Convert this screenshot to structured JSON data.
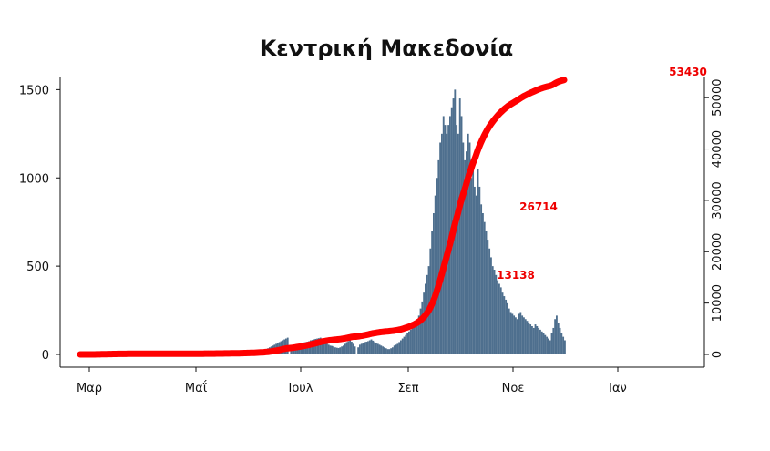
{
  "chart_data": {
    "type": "bar",
    "title": "Κεντρική Μακεδονία",
    "x_tick_labels": [
      "Μαρ",
      "Μαΐ",
      "Ιουλ",
      "Σεπ",
      "Νοε",
      "Ιαν"
    ],
    "left_axis": {
      "ylim": [
        0,
        1600
      ],
      "ticks": [
        "0",
        "500",
        "1000",
        "1500"
      ]
    },
    "right_axis": {
      "ylim": [
        0,
        55000
      ],
      "ticks": [
        "0",
        "10000",
        "20000",
        "30000",
        "40000",
        "50000"
      ]
    },
    "bar_color": "#4e6f8e",
    "line_color": "#ff0000",
    "daily_cases": [
      {
        "month": 3.18,
        "values": [
          0,
          1,
          2,
          2,
          3,
          5,
          4,
          6,
          8,
          10,
          12,
          9,
          8,
          10,
          7,
          6,
          8,
          5,
          4,
          5,
          3,
          4,
          3,
          2,
          3,
          2,
          2,
          1,
          2,
          1,
          1,
          1,
          2,
          1,
          1,
          1,
          0,
          1,
          1,
          0,
          1,
          0,
          0,
          1,
          0,
          1,
          0,
          0,
          1,
          0,
          1,
          0,
          0,
          0,
          1,
          0,
          0,
          1,
          0,
          1
        ]
      },
      {
        "month": 5.18,
        "values": [
          1,
          0,
          1,
          2,
          1,
          1,
          2,
          1,
          2,
          2,
          3,
          2,
          2,
          3,
          2,
          3,
          4,
          3,
          3,
          4,
          3,
          5,
          4,
          4,
          6,
          5,
          5,
          6,
          6,
          7,
          7,
          8,
          8,
          9,
          9,
          10,
          10,
          11,
          12,
          13,
          14,
          15,
          16,
          18,
          20,
          22,
          25,
          30,
          35,
          40,
          45,
          50,
          55,
          60,
          65,
          70,
          75,
          80,
          85,
          90,
          95
        ]
      },
      {
        "month": 7.2,
        "values": [
          35,
          40,
          45,
          50,
          55,
          60,
          62,
          65,
          68,
          70,
          72,
          75,
          80,
          82,
          85,
          88,
          90,
          92,
          95,
          85,
          80,
          70,
          60,
          55,
          50,
          48,
          45,
          40,
          38,
          36,
          40,
          45,
          50,
          60,
          70,
          75,
          80,
          72,
          60,
          45
        ]
      },
      {
        "month": 8.57,
        "values": [
          40,
          55,
          60,
          65,
          70,
          72,
          75,
          80,
          85,
          78,
          70,
          65,
          60,
          55,
          50,
          45,
          40,
          35,
          30,
          30,
          35,
          40,
          50,
          55,
          60,
          70,
          80,
          90,
          100,
          110,
          120,
          130,
          140,
          150,
          160,
          180,
          200
        ]
      },
      {
        "month": 9.77,
        "values": [
          220,
          260,
          300,
          350,
          400,
          450,
          500,
          600,
          700,
          800,
          900,
          1000,
          1100,
          1200,
          1250,
          1350,
          1300,
          1250,
          1300,
          1350,
          1400,
          1450,
          1500,
          1300,
          1250,
          1450,
          1350,
          1200,
          1100,
          1150,
          1250,
          1200,
          1000,
          1100,
          950,
          900,
          1050,
          950,
          850,
          800,
          750,
          700,
          650,
          600,
          550,
          500,
          480,
          450,
          420,
          400,
          380,
          350,
          330,
          310,
          290,
          270
        ]
      },
      {
        "month": 11.57,
        "values": [
          260,
          240,
          230,
          220,
          210,
          200,
          230,
          240,
          220,
          210,
          200,
          190,
          180,
          170,
          160,
          150,
          170,
          160,
          150,
          140,
          130,
          120,
          110,
          100,
          90,
          80,
          120,
          150,
          200,
          220,
          180,
          150,
          120,
          100,
          80
        ]
      }
    ],
    "cumulative_cases": {
      "annotations": [
        "13138",
        "26714",
        "53430"
      ],
      "series_shape": "cumulative sum of daily cases"
    }
  }
}
